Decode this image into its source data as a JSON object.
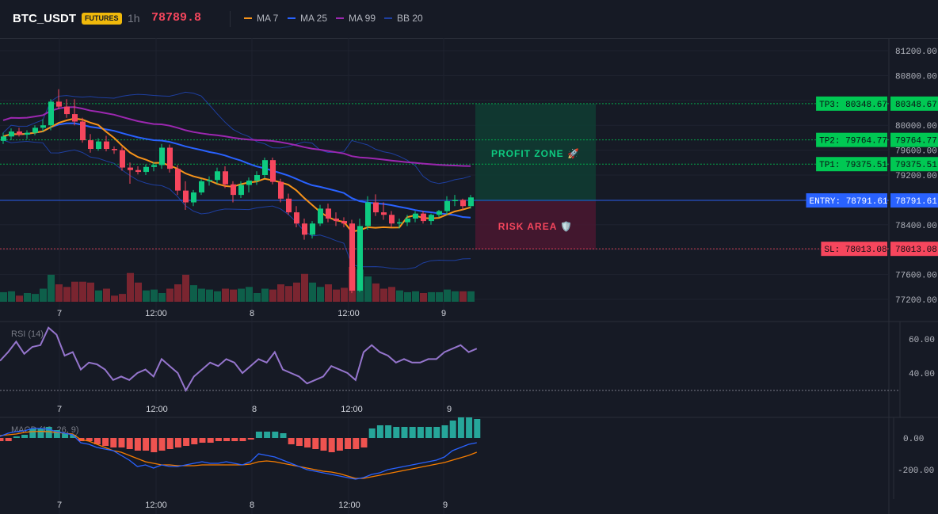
{
  "header": {
    "symbol": "BTC_USDT",
    "badge": "FUTURES",
    "timeframe": "1h",
    "last_price": "78789.8",
    "legend": [
      {
        "label": "MA 7",
        "color": "#f7931a"
      },
      {
        "label": "MA 25",
        "color": "#2962ff"
      },
      {
        "label": "MA 99",
        "color": "#9c27b0"
      },
      {
        "label": "BB 20",
        "color": "#1e3fa0"
      }
    ]
  },
  "price_axis": {
    "ticks": [
      "81200.00",
      "80800.00",
      "80400.00",
      "80000.00",
      "79600.00",
      "79200.00",
      "78800.00",
      "78400.00",
      "78000.00",
      "77600.00",
      "77200.00"
    ]
  },
  "time_axis": {
    "labels": [
      "7",
      "12:00",
      "8",
      "12:00",
      "9"
    ]
  },
  "levels": [
    {
      "label": "TP3: 80348.67",
      "value_label": "80348.67",
      "price": 80348.67,
      "color": "#00c853"
    },
    {
      "label": "TP2: 79764.77",
      "value_label": "79764.77",
      "price": 79764.77,
      "color": "#00c853"
    },
    {
      "label": "TP1: 79375.51",
      "value_label": "79375.51",
      "price": 79375.51,
      "color": "#00c853"
    },
    {
      "label": "ENTRY: 78791.61",
      "value_label": "78791.61",
      "price": 78791.61,
      "color": "#2962ff"
    },
    {
      "label": "SL: 78013.08",
      "value_label": "78013.08",
      "price": 78013.08,
      "color": "#f6465d"
    }
  ],
  "zones": {
    "profit_label": "PROFIT ZONE 🚀",
    "risk_label": "RISK AREA 🛡️"
  },
  "rsi": {
    "title": "RSI (14)",
    "ticks": [
      "60.00",
      "40.00"
    ]
  },
  "macd": {
    "title": "MACD (12, 26, 9)",
    "ticks": [
      "0.00",
      "-200.00"
    ]
  },
  "colors": {
    "up": "#0ecb81",
    "down": "#f6465d",
    "background": "#161a25",
    "grid": "#1f2330"
  },
  "chart_data": {
    "type": "candlestick",
    "timeframe": "1h",
    "price_range": [
      77150,
      81350
    ],
    "time_labels": [
      "7",
      "12:00",
      "8",
      "12:00",
      "9"
    ],
    "candles": [
      [
        79750,
        79880,
        79700,
        79820
      ],
      [
        79820,
        79950,
        79760,
        79900
      ],
      [
        79900,
        79960,
        79820,
        79850
      ],
      [
        79850,
        79920,
        79780,
        79880
      ],
      [
        79880,
        80000,
        79840,
        79960
      ],
      [
        79960,
        80100,
        79900,
        80000
      ],
      [
        80000,
        80420,
        79920,
        80380
      ],
      [
        80380,
        80580,
        80260,
        80300
      ],
      [
        80300,
        80420,
        80120,
        80180
      ],
      [
        80180,
        80420,
        80000,
        80060
      ],
      [
        80060,
        80120,
        79720,
        79760
      ],
      [
        79760,
        79860,
        79560,
        79620
      ],
      [
        79620,
        79790,
        79590,
        79740
      ],
      [
        79740,
        79830,
        79580,
        79620
      ],
      [
        79620,
        79660,
        79540,
        79600
      ],
      [
        79600,
        79650,
        79270,
        79320
      ],
      [
        79320,
        79400,
        79060,
        79280
      ],
      [
        79280,
        79340,
        79210,
        79250
      ],
      [
        79250,
        79370,
        79200,
        79330
      ],
      [
        79330,
        79410,
        79260,
        79360
      ],
      [
        79360,
        79700,
        79300,
        79640
      ],
      [
        79640,
        79690,
        79240,
        79300
      ],
      [
        79300,
        79360,
        78880,
        78950
      ],
      [
        78950,
        79100,
        78640,
        78760
      ],
      [
        78760,
        78960,
        78700,
        78920
      ],
      [
        78920,
        79140,
        78880,
        79100
      ],
      [
        79100,
        79180,
        79030,
        79120
      ],
      [
        79120,
        79320,
        79060,
        79260
      ],
      [
        79260,
        79340,
        78990,
        79050
      ],
      [
        79050,
        79100,
        78760,
        78880
      ],
      [
        78880,
        79100,
        78830,
        79040
      ],
      [
        79040,
        79160,
        78920,
        79110
      ],
      [
        79110,
        79260,
        79040,
        79200
      ],
      [
        79200,
        79480,
        79150,
        79440
      ],
      [
        79440,
        79480,
        79050,
        79090
      ],
      [
        79090,
        79140,
        78760,
        78820
      ],
      [
        78820,
        78900,
        78560,
        78600
      ],
      [
        78600,
        78700,
        78360,
        78420
      ],
      [
        78420,
        78500,
        78160,
        78240
      ],
      [
        78240,
        78460,
        78180,
        78420
      ],
      [
        78420,
        78720,
        78380,
        78660
      ],
      [
        78660,
        78740,
        78440,
        78500
      ],
      [
        78500,
        78600,
        78380,
        78460
      ],
      [
        78460,
        78520,
        78360,
        78420
      ],
      [
        78420,
        78480,
        77300,
        77340
      ],
      [
        77340,
        78500,
        77320,
        78380
      ],
      [
        78380,
        78860,
        78320,
        78760
      ],
      [
        78760,
        78890,
        78540,
        78600
      ],
      [
        78600,
        78760,
        78480,
        78560
      ],
      [
        78560,
        78620,
        78360,
        78420
      ],
      [
        78420,
        78500,
        78340,
        78440
      ],
      [
        78440,
        78560,
        78380,
        78500
      ],
      [
        78500,
        78620,
        78440,
        78580
      ],
      [
        78580,
        78620,
        78420,
        78460
      ],
      [
        78460,
        78580,
        78400,
        78560
      ],
      [
        78560,
        78640,
        78520,
        78620
      ],
      [
        78620,
        78860,
        78560,
        78780
      ],
      [
        78780,
        78880,
        78700,
        78800
      ],
      [
        78800,
        78820,
        78640,
        78700
      ],
      [
        78700,
        78880,
        78660,
        78840
      ]
    ],
    "volumes": [
      22,
      24,
      14,
      20,
      18,
      30,
      62,
      40,
      34,
      46,
      46,
      44,
      26,
      30,
      14,
      18,
      66,
      44,
      26,
      28,
      20,
      30,
      40,
      62,
      38,
      30,
      28,
      24,
      30,
      28,
      30,
      34,
      20,
      30,
      28,
      40,
      36,
      44,
      64,
      44,
      34,
      40,
      28,
      32,
      80,
      74,
      58,
      42,
      30,
      34,
      26,
      22,
      24,
      20,
      22,
      22,
      28,
      24,
      24,
      24
    ],
    "rsi": [
      47,
      52,
      58,
      51,
      55,
      56,
      66,
      62,
      50,
      52,
      42,
      46,
      45,
      42,
      36,
      38,
      36,
      40,
      42,
      38,
      48,
      44,
      40,
      30,
      38,
      42,
      46,
      44,
      48,
      46,
      40,
      44,
      48,
      46,
      52,
      42,
      40,
      38,
      34,
      36,
      38,
      44,
      42,
      40,
      36,
      52,
      56,
      52,
      50,
      46,
      48,
      46,
      46,
      48,
      48,
      52,
      54,
      56,
      52,
      54
    ],
    "macd": [
      10,
      30,
      40,
      45,
      60,
      60,
      55,
      40,
      30,
      20,
      -30,
      -40,
      -60,
      -70,
      -80,
      -110,
      -140,
      -180,
      -170,
      -190,
      -170,
      -180,
      -180,
      -170,
      -160,
      -150,
      -160,
      -160,
      -150,
      -160,
      -170,
      -150,
      -100,
      -110,
      -120,
      -140,
      -160,
      -180,
      -200,
      -210,
      -220,
      -230,
      -240,
      -250,
      -260,
      -250,
      -230,
      -220,
      -200,
      -190,
      -180,
      -170,
      -160,
      -150,
      -140,
      -120,
      -80,
      -60,
      -40,
      -30
    ],
    "macd_signal": [
      15,
      20,
      25,
      35,
      40,
      42,
      40,
      35,
      30,
      25,
      -10,
      -20,
      -40,
      -60,
      -80,
      -90,
      -110,
      -130,
      -150,
      -160,
      -170,
      -170,
      -175,
      -175,
      -175,
      -170,
      -170,
      -170,
      -170,
      -170,
      -170,
      -165,
      -150,
      -145,
      -150,
      -160,
      -170,
      -180,
      -190,
      -200,
      -210,
      -215,
      -225,
      -240,
      -255,
      -255,
      -245,
      -235,
      -225,
      -215,
      -205,
      -195,
      -185,
      -175,
      -165,
      -155,
      -140,
      -125,
      -110,
      -90
    ],
    "macd_hist": [
      -20,
      -20,
      10,
      20,
      60,
      60,
      70,
      50,
      30,
      20,
      -20,
      -20,
      -40,
      -50,
      -60,
      -60,
      -70,
      -80,
      -80,
      -90,
      -80,
      -70,
      -60,
      -50,
      -40,
      -30,
      -30,
      -20,
      -20,
      -20,
      -20,
      -10,
      40,
      40,
      40,
      30,
      -40,
      -50,
      -60,
      -70,
      -80,
      -90,
      -80,
      -70,
      -70,
      -60,
      60,
      80,
      80,
      70,
      70,
      70,
      70,
      70,
      70,
      80,
      110,
      130,
      130,
      120
    ]
  }
}
